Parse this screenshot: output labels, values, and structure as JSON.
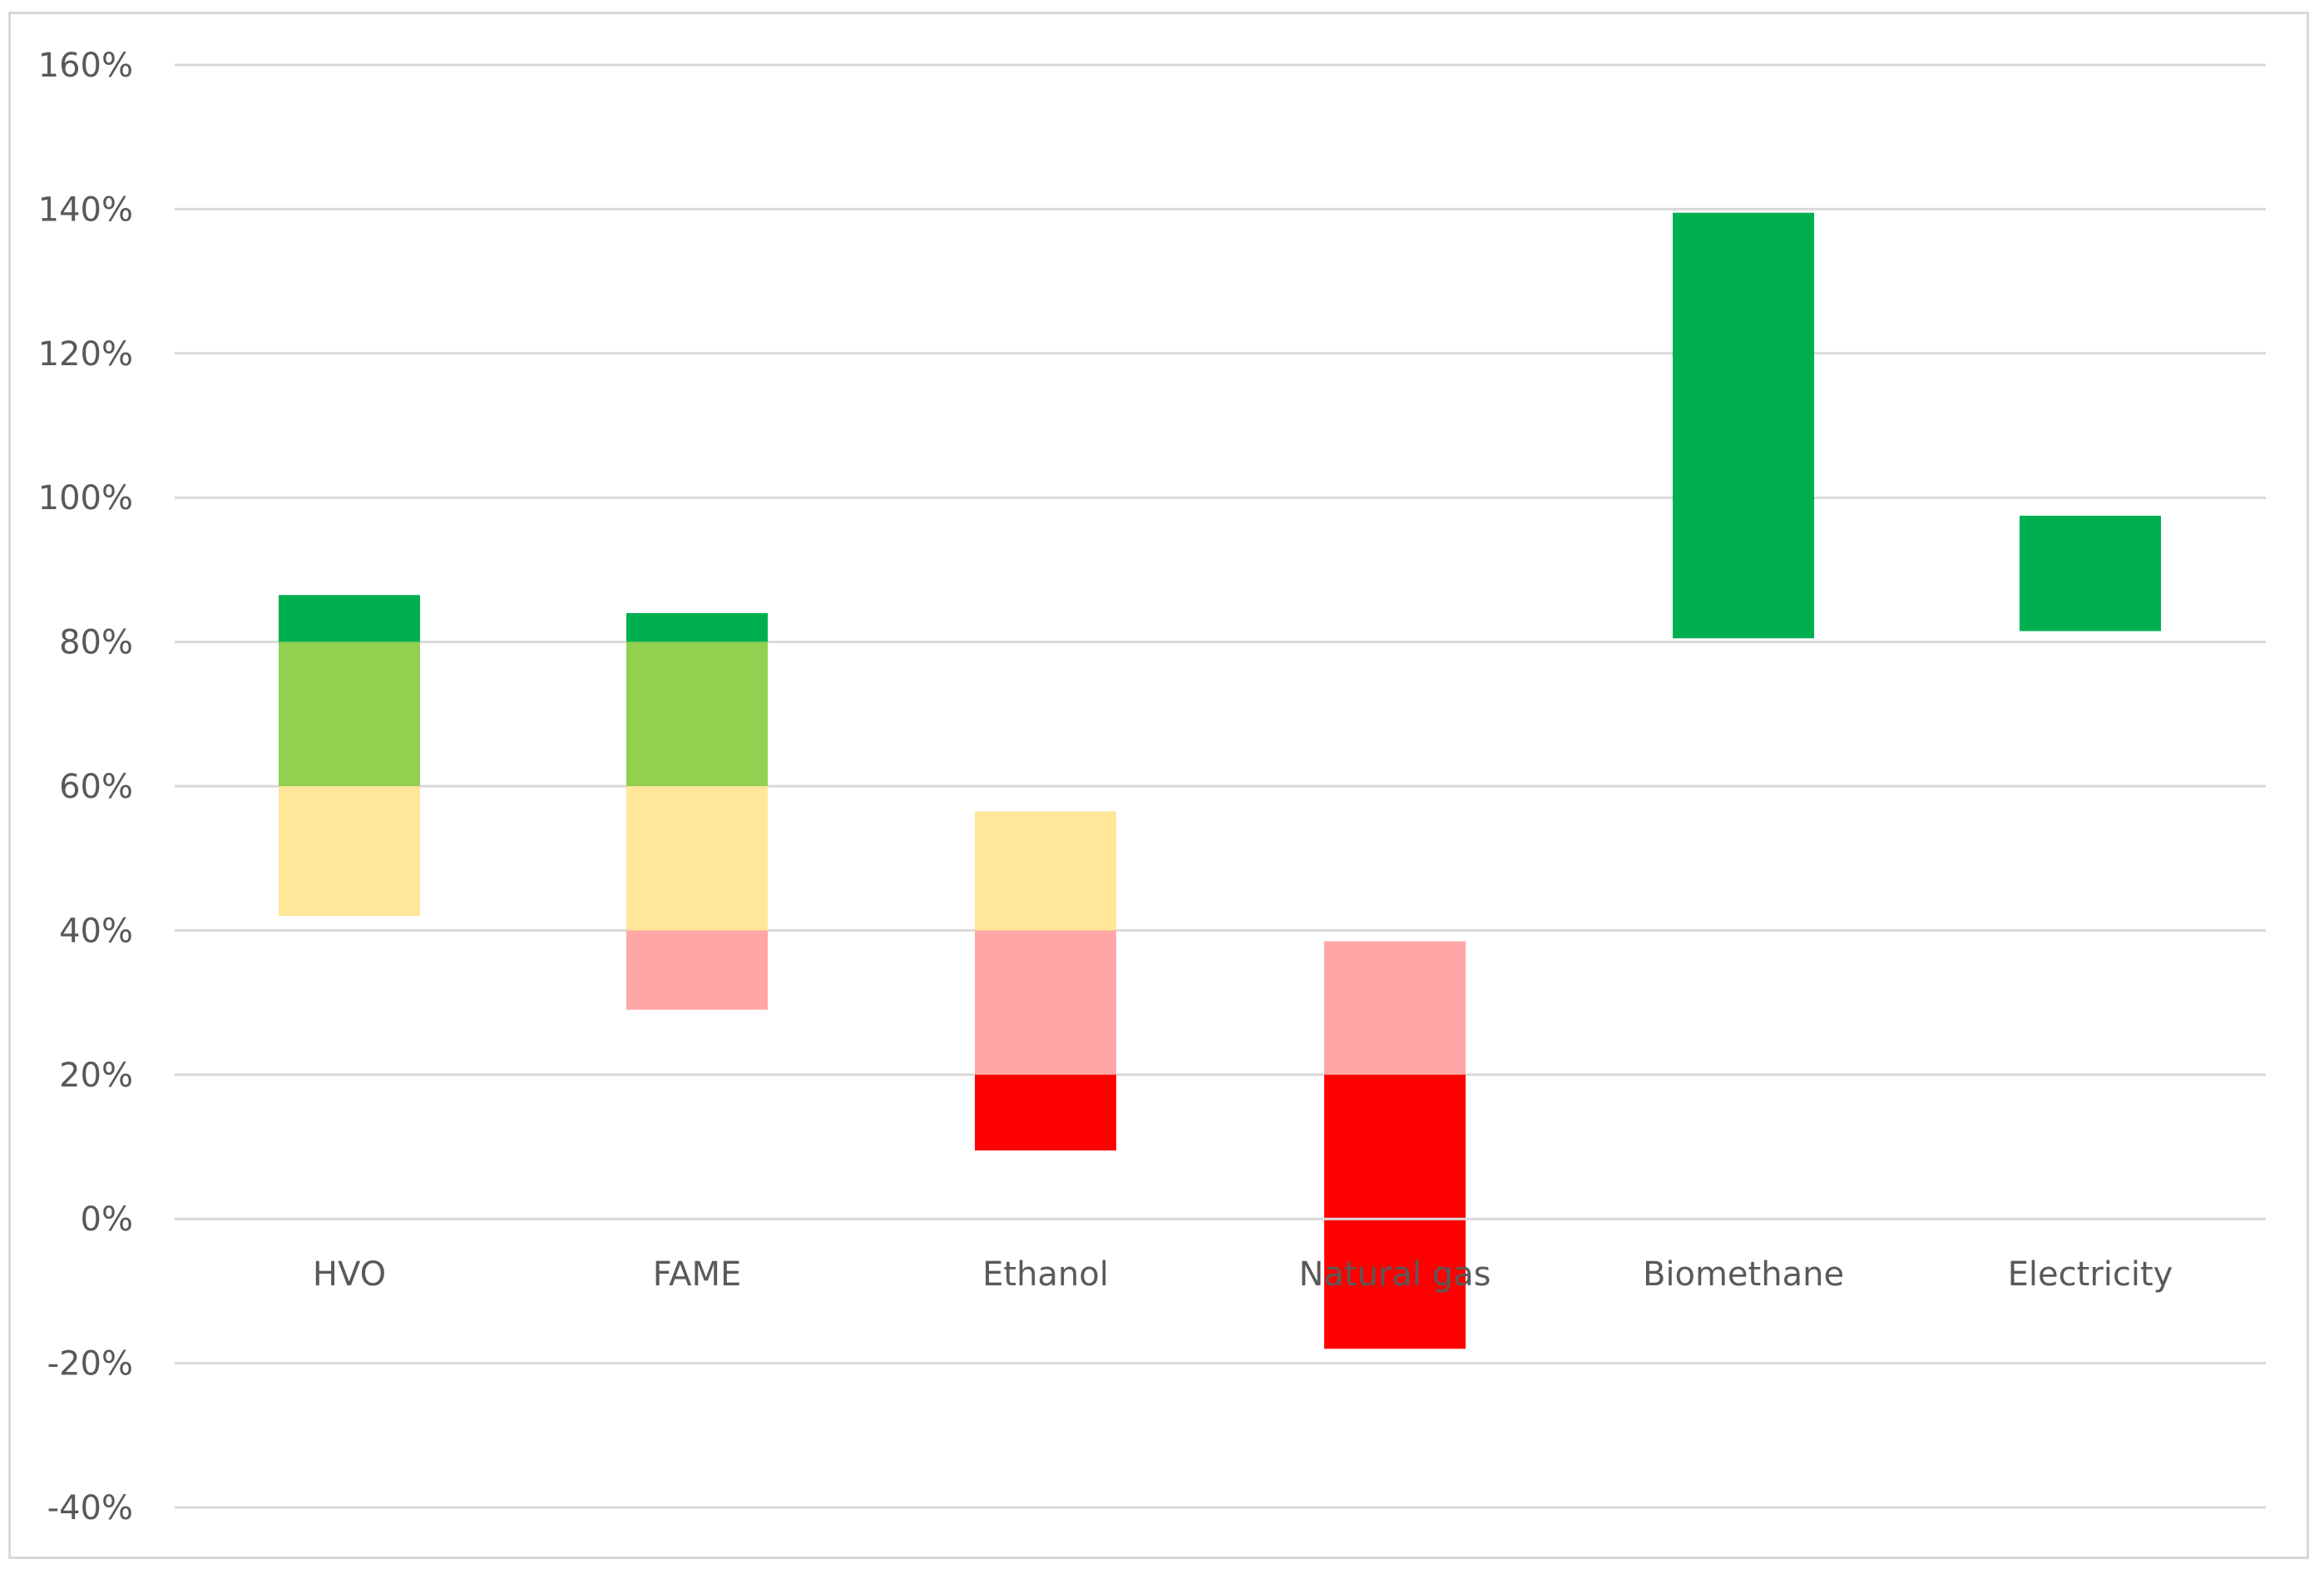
{
  "chart_data": {
    "type": "bar",
    "subtype": "floating-stacked-range",
    "title": "",
    "xlabel": "",
    "ylabel": "",
    "ylim": [
      -40,
      160
    ],
    "y_ticks": [
      -40,
      -20,
      0,
      20,
      40,
      60,
      80,
      100,
      120,
      140,
      160
    ],
    "y_tick_labels": [
      "-40%",
      "-20%",
      "0%",
      "20%",
      "40%",
      "60%",
      "80%",
      "100%",
      "120%",
      "140%",
      "160%"
    ],
    "grid": true,
    "legend": "none",
    "band_colors": {
      "above_80": "#00b050",
      "60_to_80": "#92d050",
      "40_to_60": "#ffe699",
      "20_to_40": "#ffa7a7",
      "below_20": "#ff0000"
    },
    "categories": [
      "HVO",
      "FAME",
      "Ethanol",
      "Natural gas",
      "Biomethane",
      "Electricity"
    ],
    "ranges": [
      {
        "category": "HVO",
        "low": 42,
        "high": 86.5
      },
      {
        "category": "FAME",
        "low": 29,
        "high": 84
      },
      {
        "category": "Ethanol",
        "low": 9.5,
        "high": 56.5
      },
      {
        "category": "Natural gas",
        "low": -18,
        "high": 38.5
      },
      {
        "category": "Biomethane",
        "low": 80.5,
        "high": 139.5
      },
      {
        "category": "Electricity",
        "low": 81.5,
        "high": 97.5
      }
    ]
  }
}
